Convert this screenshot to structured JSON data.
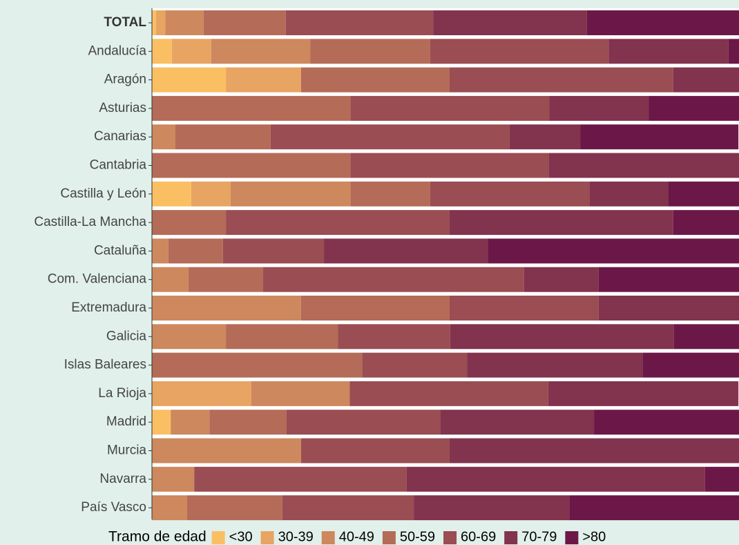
{
  "chart_data": {
    "type": "stacked-bar-horizontal",
    "categories": [
      "TOTAL",
      "Andalucía",
      "Aragón",
      "Asturias",
      "Canarias",
      "Cantabria",
      "Castilla y León",
      "Castilla-La Mancha",
      "Cataluña",
      "Com. Valenciana",
      "Extremadura",
      "Galicia",
      "Islas Baleares",
      "La Rioja",
      "Madrid",
      "Murcia",
      "Navarra",
      "País Vasco"
    ],
    "legend_title": "Tramo de edad",
    "xlim": [
      0,
      100
    ],
    "series": [
      {
        "name": "<30",
        "color": "#fbbf63",
        "values": [
          0.7,
          3.4,
          12.6,
          0,
          0,
          0,
          6.7,
          0,
          0,
          0,
          0,
          0,
          0,
          0,
          3.2,
          0,
          0,
          0
        ]
      },
      {
        "name": "30-39",
        "color": "#e8a462",
        "values": [
          1.6,
          6.7,
          12.8,
          0,
          0,
          0,
          6.7,
          0,
          0,
          0,
          0,
          0,
          0,
          16.9,
          0,
          0,
          0,
          0
        ]
      },
      {
        "name": "40-49",
        "color": "#cd885d",
        "values": [
          6.5,
          16.9,
          0,
          0,
          4.0,
          0,
          20.4,
          0,
          2.8,
          6.2,
          25.4,
          12.6,
          0,
          16.8,
          6.6,
          25.4,
          7.2,
          6.0
        ]
      },
      {
        "name": "50-59",
        "color": "#b46b58",
        "values": [
          14.0,
          20.4,
          25.3,
          33.8,
          16.2,
          33.8,
          13.6,
          12.6,
          9.3,
          12.7,
          25.3,
          19.1,
          35.8,
          0,
          13.1,
          0,
          0,
          16.2
        ]
      },
      {
        "name": "60-69",
        "color": "#9a4d52",
        "values": [
          25.1,
          30.4,
          38.1,
          33.9,
          40.7,
          33.8,
          27.1,
          38.1,
          17.2,
          44.5,
          25.4,
          19.1,
          17.9,
          33.8,
          26.2,
          25.3,
          36.2,
          22.4
        ]
      },
      {
        "name": "70-79",
        "color": "#82334e",
        "values": [
          26.2,
          20.4,
          11.2,
          16.9,
          12.1,
          32.4,
          13.5,
          38.1,
          27.9,
          12.7,
          23.9,
          38.1,
          29.9,
          32.4,
          26.2,
          49.3,
          50.8,
          26.5
        ]
      },
      {
        "name": ">80",
        "color": "#6b1848",
        "values": [
          25.9,
          1.9,
          0,
          15.4,
          26.9,
          0,
          12.0,
          11.2,
          42.8,
          23.9,
          0,
          11.2,
          16.5,
          0,
          24.7,
          0,
          5.8,
          28.9
        ]
      }
    ]
  }
}
